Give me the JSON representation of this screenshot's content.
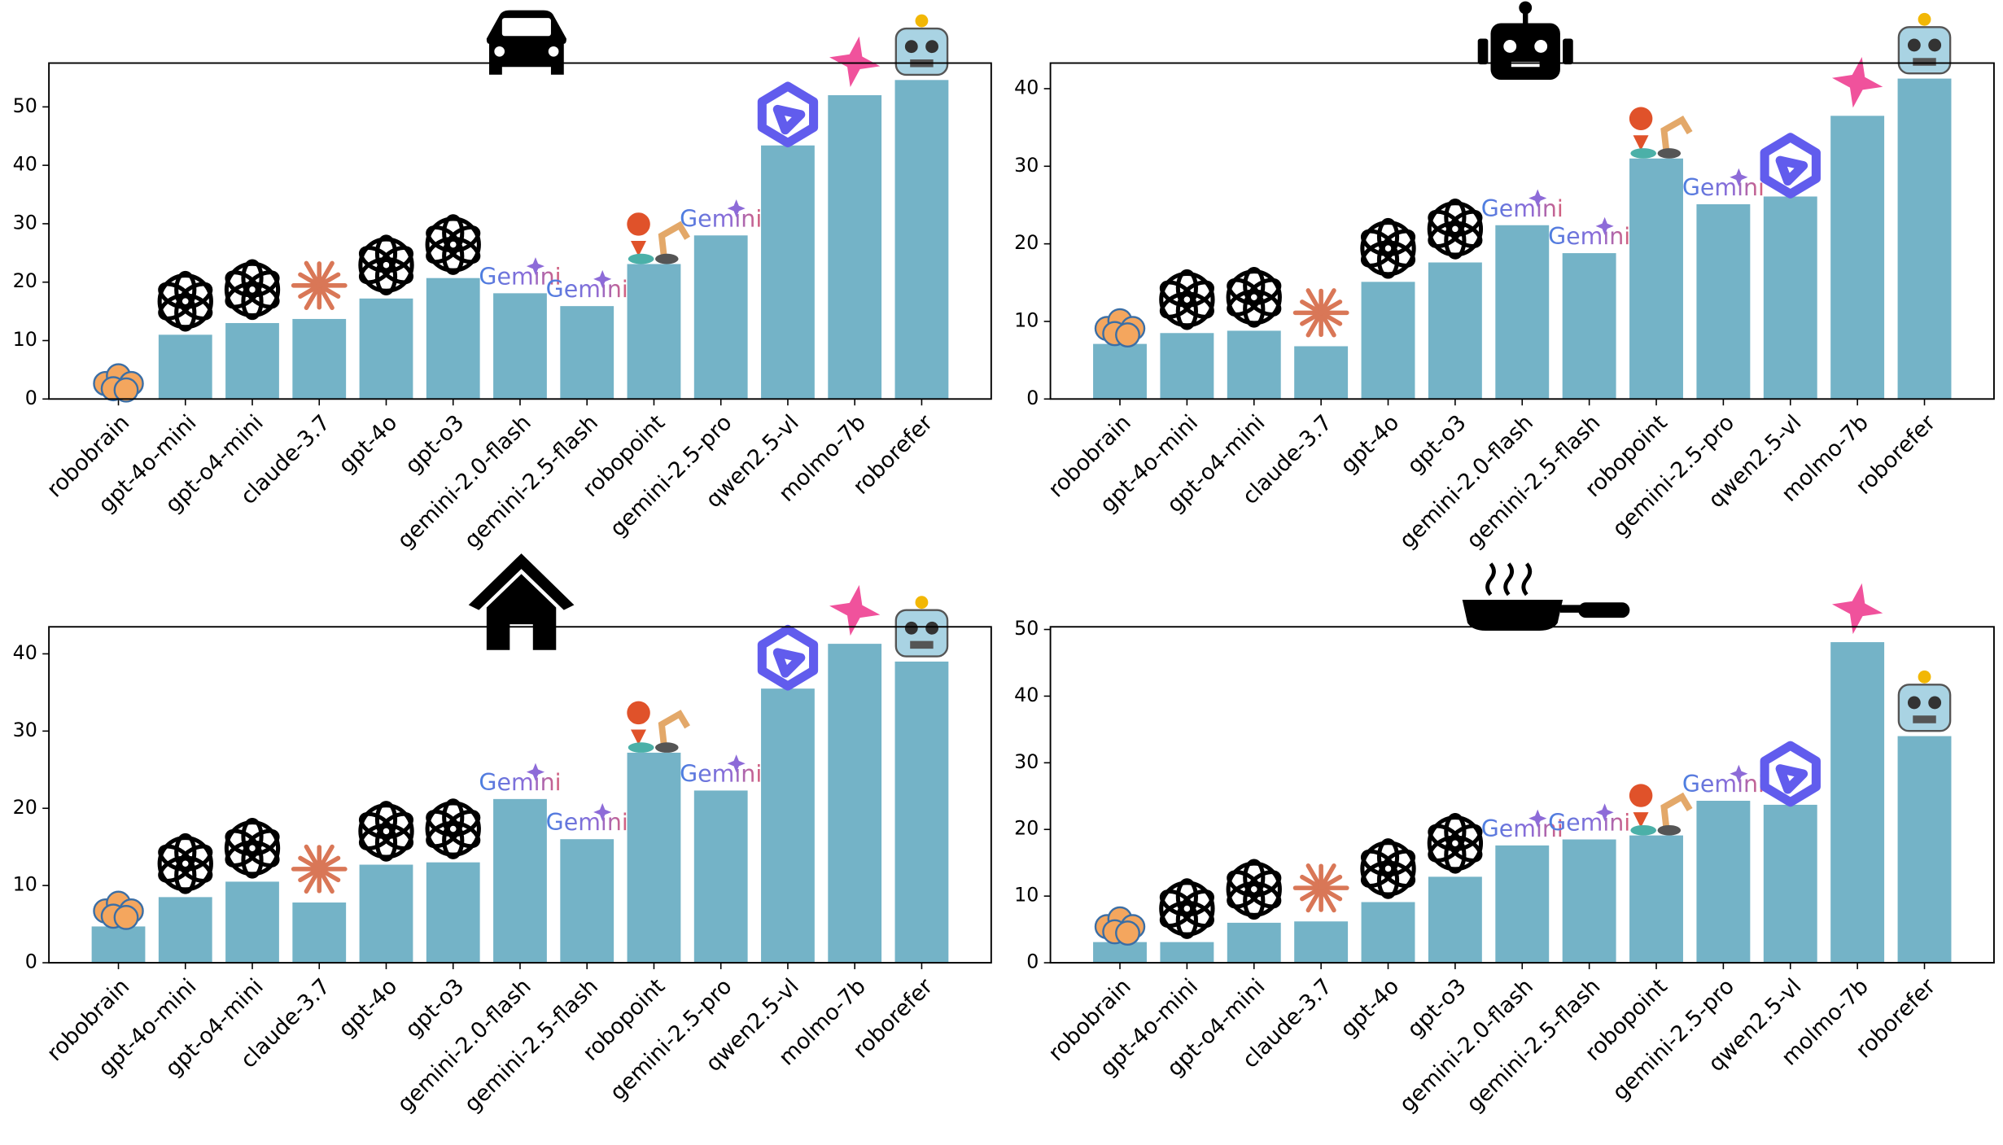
{
  "logo_text": "Gemini",
  "chart_data": [
    {
      "type": "bar",
      "color": "#74b3c7",
      "categories": [
        "robobrain",
        "gpt-4o-mini",
        "gpt-o4-mini",
        "claude-3.7",
        "gpt-4o",
        "gpt-o3",
        "gemini-2.0-flash",
        "gemini-2.5-flash",
        "robopoint",
        "gemini-2.5-pro",
        "qwen2.5-vl",
        "molmo-7b",
        "roborefer"
      ],
      "values": [
        0,
        11.0,
        13.0,
        13.7,
        17.2,
        20.7,
        18.1,
        15.9,
        23.1,
        28.0,
        43.4,
        52.0,
        54.6
      ],
      "ylim": [
        0,
        57.5
      ],
      "yticks": [
        0,
        10,
        20,
        30,
        40,
        50
      ]
    },
    {
      "type": "bar",
      "color": "#74b3c7",
      "categories": [
        "robobrain",
        "gpt-4o-mini",
        "gpt-o4-mini",
        "claude-3.7",
        "gpt-4o",
        "gpt-o3",
        "gemini-2.0-flash",
        "gemini-2.5-flash",
        "robopoint",
        "gemini-2.5-pro",
        "qwen2.5-vl",
        "molmo-7b",
        "roborefer"
      ],
      "values": [
        7.1,
        8.5,
        8.8,
        6.8,
        15.1,
        17.6,
        22.4,
        18.8,
        31.0,
        25.1,
        26.1,
        36.5,
        41.3
      ],
      "ylim": [
        0,
        43.3
      ],
      "yticks": [
        0,
        10,
        20,
        30,
        40
      ]
    },
    {
      "type": "bar",
      "color": "#74b3c7",
      "categories": [
        "robobrain",
        "gpt-4o-mini",
        "gpt-o4-mini",
        "claude-3.7",
        "gpt-4o",
        "gpt-o3",
        "gemini-2.0-flash",
        "gemini-2.5-flash",
        "robopoint",
        "gemini-2.5-pro",
        "qwen2.5-vl",
        "molmo-7b",
        "roborefer"
      ],
      "values": [
        4.7,
        8.5,
        10.5,
        7.8,
        12.7,
        13.0,
        21.2,
        16.0,
        27.2,
        22.3,
        35.5,
        41.3,
        39.0
      ],
      "ylim": [
        0,
        43.5
      ],
      "yticks": [
        0,
        10,
        20,
        30,
        40
      ]
    },
    {
      "type": "bar",
      "color": "#74b3c7",
      "categories": [
        "robobrain",
        "gpt-4o-mini",
        "gpt-o4-mini",
        "claude-3.7",
        "gpt-4o",
        "gpt-o3",
        "gemini-2.0-flash",
        "gemini-2.5-flash",
        "robopoint",
        "gemini-2.5-pro",
        "qwen2.5-vl",
        "molmo-7b",
        "roborefer"
      ],
      "values": [
        3.1,
        3.1,
        6.0,
        6.2,
        9.1,
        12.9,
        17.6,
        18.5,
        19.1,
        24.3,
        23.7,
        48.1,
        34.0
      ],
      "ylim": [
        0,
        50.4
      ],
      "yticks": [
        0,
        10,
        20,
        30,
        40,
        50
      ]
    }
  ]
}
